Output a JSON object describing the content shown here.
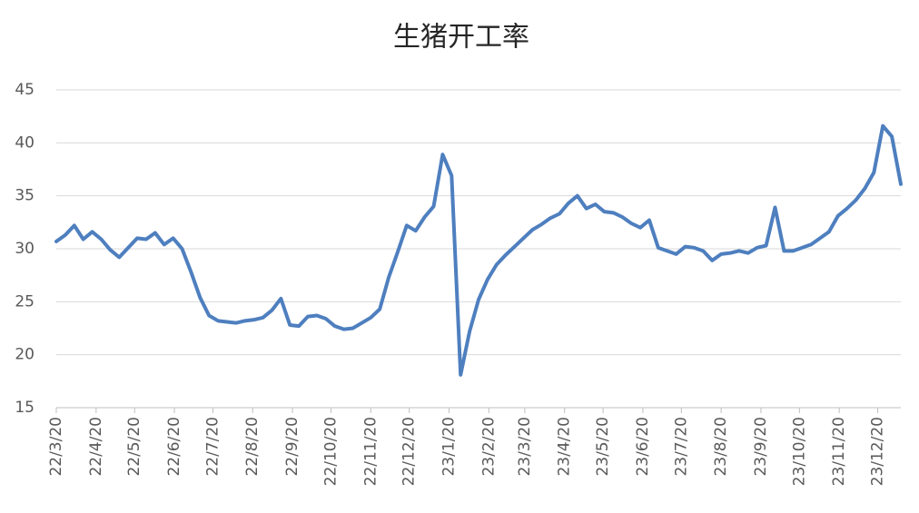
{
  "chart_data": {
    "type": "line",
    "title": "生猪开工率",
    "x": [
      "2022-03-20",
      "2022-03-27",
      "2022-04-03",
      "2022-04-10",
      "2022-04-17",
      "2022-04-24",
      "2022-05-01",
      "2022-05-08",
      "2022-05-15",
      "2022-05-22",
      "2022-05-29",
      "2022-06-05",
      "2022-06-12",
      "2022-06-19",
      "2022-06-26",
      "2022-07-03",
      "2022-07-10",
      "2022-07-17",
      "2022-07-24",
      "2022-07-31",
      "2022-08-07",
      "2022-08-14",
      "2022-08-21",
      "2022-08-28",
      "2022-09-04",
      "2022-09-11",
      "2022-09-18",
      "2022-09-25",
      "2022-10-02",
      "2022-10-09",
      "2022-10-16",
      "2022-10-23",
      "2022-10-30",
      "2022-11-06",
      "2022-11-13",
      "2022-11-20",
      "2022-11-27",
      "2022-12-04",
      "2022-12-11",
      "2022-12-18",
      "2022-12-25",
      "2023-01-01",
      "2023-01-08",
      "2023-01-15",
      "2023-01-22",
      "2023-01-29",
      "2023-02-05",
      "2023-02-12",
      "2023-02-19",
      "2023-02-26",
      "2023-03-05",
      "2023-03-12",
      "2023-03-19",
      "2023-03-26",
      "2023-04-02",
      "2023-04-09",
      "2023-04-16",
      "2023-04-23",
      "2023-04-30",
      "2023-05-07",
      "2023-05-14",
      "2023-05-21",
      "2023-05-28",
      "2023-06-04",
      "2023-06-11",
      "2023-06-18",
      "2023-06-25",
      "2023-07-02",
      "2023-07-09",
      "2023-07-16",
      "2023-07-23",
      "2023-07-30",
      "2023-08-06",
      "2023-08-13",
      "2023-08-20",
      "2023-08-27",
      "2023-09-03",
      "2023-09-10",
      "2023-09-17",
      "2023-09-24",
      "2023-10-01",
      "2023-10-08",
      "2023-10-15",
      "2023-10-22",
      "2023-10-29",
      "2023-11-05",
      "2023-11-12",
      "2023-11-19",
      "2023-11-26",
      "2023-12-03",
      "2023-12-10",
      "2023-12-17",
      "2023-12-24",
      "2023-12-31",
      "2024-01-07"
    ],
    "series": [
      {
        "color": "#4e7fbf",
        "values": [
          30.7,
          31.3,
          32.2,
          30.9,
          31.6,
          30.9,
          29.9,
          29.2,
          30.1,
          31.0,
          30.9,
          31.5,
          30.4,
          31.0,
          30.0,
          27.8,
          25.4,
          23.7,
          23.2,
          23.1,
          23.0,
          23.2,
          23.3,
          23.5,
          24.2,
          25.3,
          22.8,
          22.7,
          23.6,
          23.7,
          23.4,
          22.7,
          22.4,
          22.5,
          23.0,
          23.5,
          24.3,
          27.3,
          29.7,
          32.2,
          31.7,
          33.0,
          34.0,
          38.9,
          36.9,
          18.1,
          22.2,
          25.2,
          27.1,
          28.5,
          29.4,
          30.2,
          31.0,
          31.8,
          32.3,
          32.9,
          33.3,
          34.3,
          35.0,
          33.8,
          34.2,
          33.5,
          33.4,
          33.0,
          32.4,
          32.0,
          32.7,
          30.1,
          29.8,
          29.5,
          30.2,
          30.1,
          29.8,
          28.9,
          29.5,
          29.6,
          29.8,
          29.6,
          30.1,
          30.3,
          33.9,
          29.8,
          29.8,
          30.1,
          30.4,
          31.0,
          31.6,
          33.1,
          33.8,
          34.6,
          35.7,
          37.2,
          41.6,
          40.6,
          36.1
        ]
      }
    ],
    "xlim": [
      "2022-03-20",
      "2024-01-07"
    ],
    "xticks": [
      {
        "value": "2022-03-20",
        "label": "22/3/20"
      },
      {
        "value": "2022-04-20",
        "label": "22/4/20"
      },
      {
        "value": "2022-05-20",
        "label": "22/5/20"
      },
      {
        "value": "2022-06-20",
        "label": "22/6/20"
      },
      {
        "value": "2022-07-20",
        "label": "22/7/20"
      },
      {
        "value": "2022-08-20",
        "label": "22/8/20"
      },
      {
        "value": "2022-09-20",
        "label": "22/9/20"
      },
      {
        "value": "2022-10-20",
        "label": "22/10/20"
      },
      {
        "value": "2022-11-20",
        "label": "22/11/20"
      },
      {
        "value": "2022-12-20",
        "label": "22/12/20"
      },
      {
        "value": "2023-01-20",
        "label": "23/1/20"
      },
      {
        "value": "2023-02-20",
        "label": "23/2/20"
      },
      {
        "value": "2023-03-20",
        "label": "23/3/20"
      },
      {
        "value": "2023-04-20",
        "label": "23/4/20"
      },
      {
        "value": "2023-05-20",
        "label": "23/5/20"
      },
      {
        "value": "2023-06-20",
        "label": "23/6/20"
      },
      {
        "value": "2023-07-20",
        "label": "23/7/20"
      },
      {
        "value": "2023-08-20",
        "label": "23/8/20"
      },
      {
        "value": "2023-09-20",
        "label": "23/9/20"
      },
      {
        "value": "2023-10-20",
        "label": "23/10/20"
      },
      {
        "value": "2023-11-20",
        "label": "23/11/20"
      },
      {
        "value": "2023-12-20",
        "label": "23/12/20"
      }
    ],
    "ylim": [
      15,
      45
    ],
    "yticks": [
      15,
      20,
      25,
      30,
      35,
      40,
      45
    ],
    "grid": true
  }
}
